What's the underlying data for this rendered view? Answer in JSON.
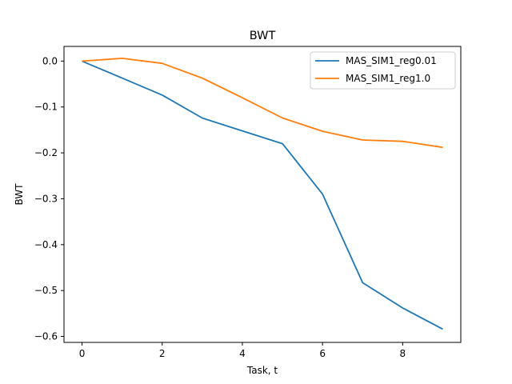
{
  "chart_data": {
    "type": "line",
    "title": "BWT",
    "xlabel": "Task, t",
    "ylabel": "BWT",
    "xlim": [
      -0.45,
      9.45
    ],
    "ylim": [
      -0.613,
      0.032
    ],
    "x_ticks": [
      0,
      2,
      4,
      6,
      8
    ],
    "x_tick_labels": [
      "0",
      "2",
      "4",
      "6",
      "8"
    ],
    "y_ticks": [
      0.0,
      -0.1,
      -0.2,
      -0.3,
      -0.4,
      -0.5,
      -0.6
    ],
    "y_tick_labels": [
      "0.0",
      "−0.1",
      "−0.2",
      "−0.3",
      "−0.4",
      "−0.5",
      "−0.6"
    ],
    "grid": false,
    "legend_position": "top-right",
    "x": [
      0,
      1,
      2,
      3,
      4,
      5,
      6,
      7,
      8,
      9
    ],
    "series": [
      {
        "name": "MAS_SIM1_reg0.01",
        "color": "#1f77b4",
        "values": [
          0.0,
          -0.037,
          -0.074,
          -0.124,
          -0.152,
          -0.18,
          -0.29,
          -0.483,
          -0.538,
          -0.584
        ]
      },
      {
        "name": "MAS_SIM1_reg1.0",
        "color": "#ff7f0e",
        "values": [
          0.0,
          0.006,
          -0.005,
          -0.037,
          -0.08,
          -0.124,
          -0.153,
          -0.172,
          -0.175,
          -0.188
        ]
      }
    ]
  }
}
